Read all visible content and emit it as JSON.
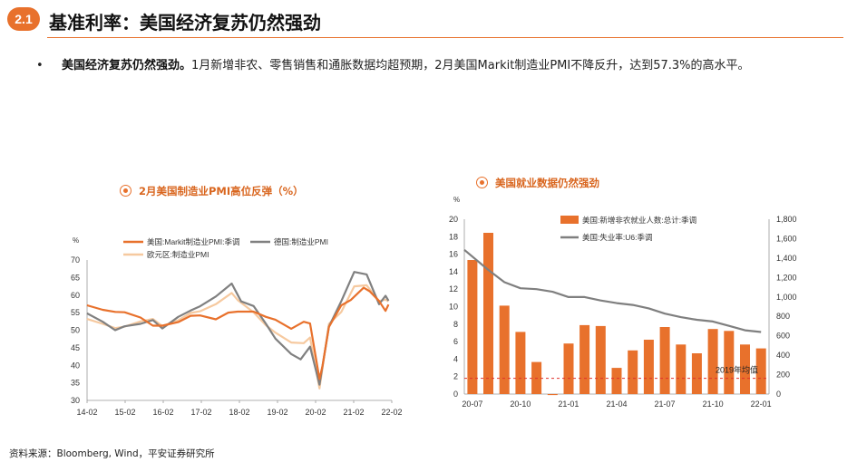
{
  "header": {
    "badge": "2.1",
    "title": "基准利率：美国经济复苏仍然强劲"
  },
  "bullet": {
    "dot": "•",
    "bold": "美国经济复苏仍然强劲。",
    "text": "1月新增非农、零售销售和通胀数据均超预期，2月美国Markit制造业PMI不降反升，达到57.3%的高水平。"
  },
  "chart1_title": "2月美国制造业PMI高位反弹（%）",
  "chart2_title": "美国就业数据仍然强劲",
  "source": "资料来源：Bloomberg, Wind，平安证券研究所",
  "colors": {
    "accent": "#e8712c",
    "us": "#e8712c",
    "de": "#808080",
    "eu": "#f6c99f",
    "bar": "#e8712c",
    "u6": "#7f7f7f",
    "ref": "#e0312a"
  },
  "chart_data": [
    {
      "type": "line",
      "title": "2月美国制造业PMI高位反弹（%）",
      "ylabel": "%",
      "ylim": [
        30,
        70
      ],
      "yticks": [
        30,
        35,
        40,
        45,
        50,
        55,
        60,
        65,
        70
      ],
      "xticks": [
        "14-02",
        "15-02",
        "16-02",
        "17-02",
        "18-02",
        "19-02",
        "20-02",
        "21-02",
        "22-02"
      ],
      "x_start": 2014.083,
      "x_end": 2022.167,
      "series": [
        {
          "name": "美国:Markit制造业PMI:季调",
          "color": "#e8712c",
          "values": [
            [
              2014.08,
              57.1
            ],
            [
              2014.5,
              55.8
            ],
            [
              2014.83,
              55.2
            ],
            [
              2015.08,
              55.1
            ],
            [
              2015.5,
              53.6
            ],
            [
              2015.83,
              51.3
            ],
            [
              2016.08,
              51.3
            ],
            [
              2016.5,
              52.3
            ],
            [
              2016.83,
              54.1
            ],
            [
              2017.08,
              54.2
            ],
            [
              2017.5,
              53.1
            ],
            [
              2017.83,
              55.0
            ],
            [
              2018.08,
              55.3
            ],
            [
              2018.5,
              55.3
            ],
            [
              2018.83,
              53.8
            ],
            [
              2019.08,
              53.0
            ],
            [
              2019.5,
              50.4
            ],
            [
              2019.83,
              52.4
            ],
            [
              2020.0,
              51.9
            ],
            [
              2020.25,
              36.1
            ],
            [
              2020.33,
              39.8
            ],
            [
              2020.5,
              50.9
            ],
            [
              2020.83,
              57.1
            ],
            [
              2021.08,
              58.6
            ],
            [
              2021.42,
              62.1
            ],
            [
              2021.58,
              61.1
            ],
            [
              2021.83,
              58.3
            ],
            [
              2022.0,
              55.5
            ],
            [
              2022.08,
              57.3
            ]
          ]
        },
        {
          "name": "德国:制造业PMI",
          "color": "#808080",
          "values": [
            [
              2014.08,
              54.8
            ],
            [
              2014.5,
              52.4
            ],
            [
              2014.83,
              50.0
            ],
            [
              2015.08,
              51.1
            ],
            [
              2015.5,
              51.8
            ],
            [
              2015.83,
              52.9
            ],
            [
              2016.08,
              50.5
            ],
            [
              2016.5,
              53.8
            ],
            [
              2016.83,
              55.6
            ],
            [
              2017.08,
              56.8
            ],
            [
              2017.5,
              59.6
            ],
            [
              2017.83,
              62.5
            ],
            [
              2017.92,
              63.3
            ],
            [
              2018.17,
              58.2
            ],
            [
              2018.5,
              56.9
            ],
            [
              2018.83,
              51.8
            ],
            [
              2019.08,
              47.6
            ],
            [
              2019.5,
              43.2
            ],
            [
              2019.75,
              41.7
            ],
            [
              2020.0,
              45.3
            ],
            [
              2020.25,
              34.5
            ],
            [
              2020.5,
              51.0
            ],
            [
              2020.83,
              58.3
            ],
            [
              2021.17,
              66.6
            ],
            [
              2021.5,
              65.9
            ],
            [
              2021.83,
              57.4
            ],
            [
              2022.0,
              59.8
            ],
            [
              2022.08,
              58.4
            ]
          ]
        },
        {
          "name": "欧元区:制造业PMI",
          "color": "#f6c99f",
          "values": [
            [
              2014.08,
              53.2
            ],
            [
              2014.5,
              51.8
            ],
            [
              2014.83,
              50.6
            ],
            [
              2015.08,
              51.0
            ],
            [
              2015.5,
              52.5
            ],
            [
              2015.83,
              53.2
            ],
            [
              2016.08,
              51.2
            ],
            [
              2016.5,
              52.8
            ],
            [
              2016.83,
              54.9
            ],
            [
              2017.08,
              55.4
            ],
            [
              2017.5,
              57.4
            ],
            [
              2017.92,
              60.6
            ],
            [
              2018.08,
              58.6
            ],
            [
              2018.5,
              55.1
            ],
            [
              2018.83,
              51.4
            ],
            [
              2019.08,
              49.3
            ],
            [
              2019.5,
              46.5
            ],
            [
              2019.83,
              46.3
            ],
            [
              2020.0,
              47.9
            ],
            [
              2020.25,
              33.4
            ],
            [
              2020.5,
              51.8
            ],
            [
              2020.83,
              55.2
            ],
            [
              2021.17,
              62.5
            ],
            [
              2021.5,
              62.8
            ],
            [
              2021.83,
              58.3
            ],
            [
              2022.0,
              58.7
            ],
            [
              2022.08,
              58.2
            ]
          ]
        }
      ]
    },
    {
      "type": "bar+line",
      "title": "美国就业数据仍然强劲",
      "ylabel": "%",
      "ylim_left": [
        0,
        20
      ],
      "yticks_left": [
        0,
        2,
        4,
        6,
        8,
        10,
        12,
        14,
        16,
        18,
        20
      ],
      "ylim_right": [
        0,
        1800
      ],
      "yticks_right": [
        "0",
        "200",
        "400",
        "600",
        "800",
        "1,000",
        "1,200",
        "1,400",
        "1,600",
        "1,800"
      ],
      "xticks": [
        "20-07",
        "20-10",
        "21-01",
        "21-04",
        "21-07",
        "21-10",
        "22-01"
      ],
      "categories": [
        "20-07",
        "20-08",
        "20-09",
        "20-10",
        "20-11",
        "20-12",
        "21-01",
        "21-02",
        "21-03",
        "21-04",
        "21-05",
        "21-06",
        "21-07",
        "21-08",
        "21-09",
        "21-10",
        "21-11",
        "21-12",
        "22-01"
      ],
      "series": [
        {
          "name": "美国:新增非农就业人数:总计:季调",
          "type": "bar",
          "axis": "right",
          "color": "#e8712c",
          "values": [
            1380,
            1660,
            910,
            640,
            330,
            -10,
            520,
            710,
            700,
            270,
            450,
            560,
            690,
            510,
            420,
            670,
            650,
            510,
            470
          ]
        },
        {
          "name": "美国:失业率:U6:季调",
          "type": "line",
          "axis": "left",
          "color": "#7f7f7f",
          "values": [
            16.5,
            14.2,
            12.8,
            12.1,
            12.0,
            11.7,
            11.1,
            11.1,
            10.7,
            10.4,
            10.2,
            9.8,
            9.2,
            8.8,
            8.5,
            8.3,
            7.8,
            7.3,
            7.1
          ]
        }
      ],
      "reference": {
        "label": "2019年均值",
        "value": 1.8,
        "color": "#e0312a"
      }
    }
  ]
}
